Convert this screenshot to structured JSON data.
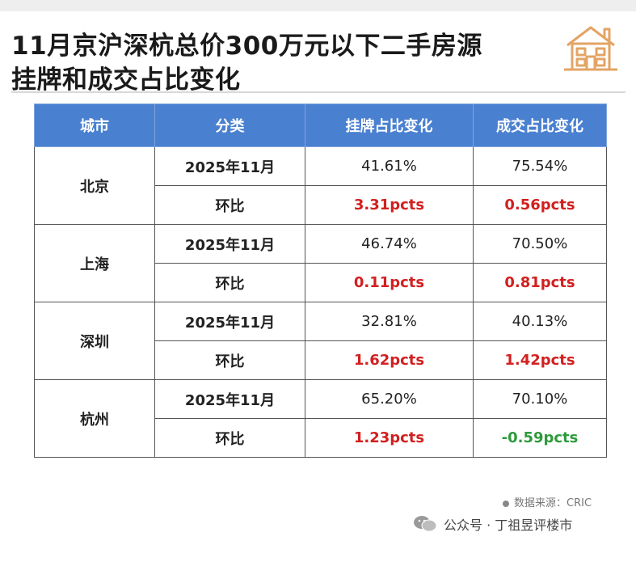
{
  "title": {
    "line1": "11月京沪深杭总价300万元以下二手房源",
    "line2": "挂牌和成交占比变化"
  },
  "icons": {
    "header": "house-icon",
    "footer": "wechat-icon",
    "source": "dot-icon"
  },
  "colors": {
    "header_bg": "#4a80d0",
    "positive": "#d22020",
    "negative": "#2e9a3c",
    "icon": "#e3a464"
  },
  "table": {
    "headers": [
      "城市",
      "分类",
      "挂牌占比变化",
      "成交占比变化"
    ],
    "rows": [
      {
        "city": "北京",
        "month_label": "2025年11月",
        "listing": "41.61%",
        "deal": "75.54%",
        "change_label": "环比",
        "listing_change": "3.31pcts",
        "deal_change": "0.56pcts"
      },
      {
        "city": "上海",
        "month_label": "2025年11月",
        "listing": "46.74%",
        "deal": "70.50%",
        "change_label": "环比",
        "listing_change": "0.11pcts",
        "deal_change": "0.81pcts"
      },
      {
        "city": "深圳",
        "month_label": "2025年11月",
        "listing": "32.81%",
        "deal": "40.13%",
        "change_label": "环比",
        "listing_change": "1.62pcts",
        "deal_change": "1.42pcts"
      },
      {
        "city": "杭州",
        "month_label": "2025年11月",
        "listing": "65.20%",
        "deal": "70.10%",
        "change_label": "环比",
        "listing_change": "1.23pcts",
        "deal_change": "-0.59pcts"
      }
    ]
  },
  "footer": {
    "source": "数据来源：CRIC",
    "account": "公众号 · 丁祖昱评楼市"
  }
}
